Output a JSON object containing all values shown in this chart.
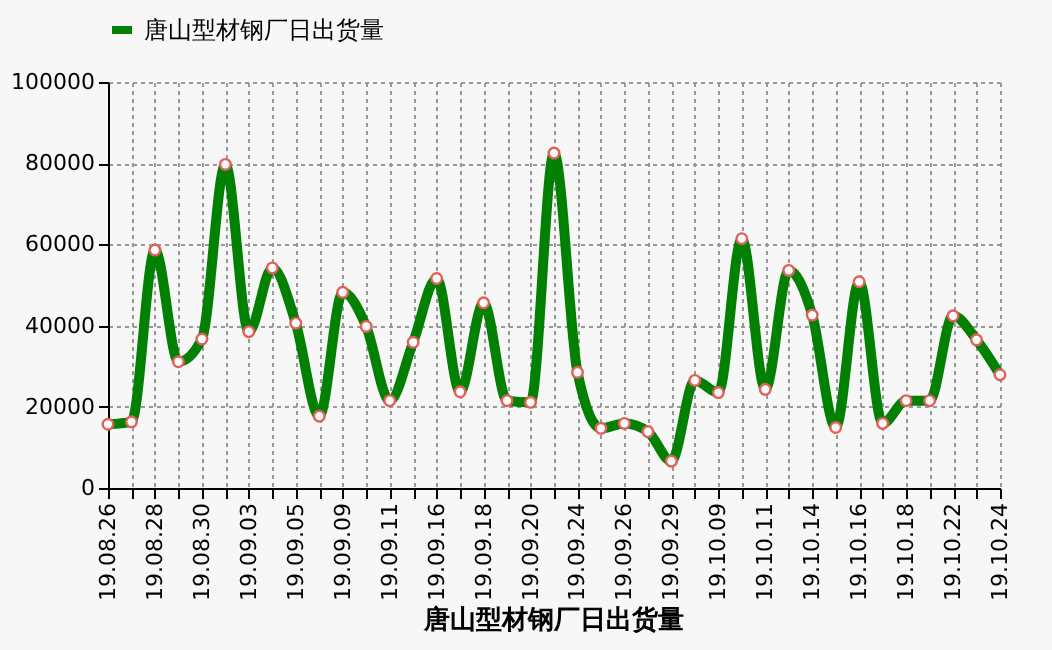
{
  "chart_data": {
    "type": "line",
    "title": "唐山型材钢厂日出货量",
    "categories": [
      "19.08.26",
      null,
      "19.08.28",
      null,
      "19.08.30",
      null,
      "19.09.03",
      null,
      "19.09.05",
      null,
      "19.09.09",
      null,
      "19.09.11",
      null,
      "19.09.16",
      null,
      "19.09.18",
      null,
      "19.09.20",
      null,
      "19.09.24",
      null,
      "19.09.26",
      null,
      "19.09.29",
      null,
      "19.10.09",
      null,
      "19.10.11",
      null,
      "19.10.14",
      null,
      "19.10.16",
      null,
      "19.10.18",
      null,
      "19.10.22",
      null,
      "19.10.24"
    ],
    "series": [
      {
        "name": "唐山型材钢厂日出货量",
        "color": "#008000",
        "values": [
          15700,
          16300,
          58600,
          31100,
          36700,
          79700,
          38500,
          54200,
          40600,
          17700,
          48200,
          39800,
          21500,
          35900,
          51600,
          23700,
          45600,
          21500,
          21100,
          82500,
          28500,
          14700,
          15900,
          13900,
          6600,
          26500,
          23500,
          61400,
          24300,
          53600,
          42600,
          14900,
          50800,
          15900,
          21500,
          21500,
          42400,
          36500,
          27900
        ]
      }
    ],
    "ylim": [
      0,
      100000
    ],
    "yticks": [
      0,
      20000,
      40000,
      60000,
      80000,
      100000
    ],
    "grid": true,
    "legend": "top",
    "marker": "circle",
    "line_style": "solid"
  }
}
